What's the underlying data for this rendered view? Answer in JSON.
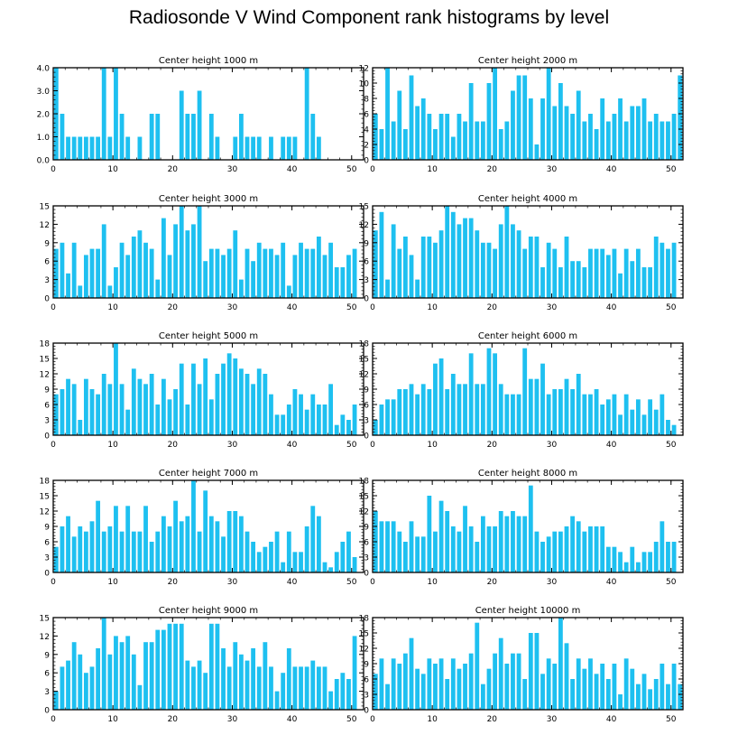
{
  "title": "Radiosonde V Wind Component rank histograms by level",
  "bar_color": "#1ec0f0",
  "chart_data": [
    {
      "type": "bar",
      "title": "Center height 1000 m",
      "ylim": [
        0,
        4
      ],
      "yticks": [
        0,
        1,
        2,
        3,
        4
      ],
      "ytick_labels": [
        "0.0",
        "1.0",
        "2.0",
        "3.0",
        "4.0"
      ],
      "xlim": [
        0,
        52
      ],
      "xticks": [
        0,
        10,
        20,
        30,
        40,
        50
      ],
      "values": [
        4,
        2,
        1,
        1,
        1,
        1,
        1,
        1,
        4,
        1,
        4,
        2,
        1,
        0,
        1,
        0,
        2,
        2,
        0,
        0,
        0,
        3,
        2,
        2,
        3,
        0,
        2,
        1,
        0,
        0,
        1,
        2,
        1,
        1,
        1,
        0,
        1,
        0,
        1,
        1,
        1,
        0,
        4,
        2,
        1,
        0,
        0,
        0,
        0,
        0,
        0,
        0
      ]
    },
    {
      "type": "bar",
      "title": "Center height 2000 m",
      "ylim": [
        0,
        12
      ],
      "yticks": [
        0,
        2,
        4,
        6,
        8,
        10,
        12
      ],
      "ytick_labels": [
        "0",
        "2",
        "4",
        "6",
        "8",
        "10",
        "12"
      ],
      "xlim": [
        0,
        52
      ],
      "xticks": [
        0,
        10,
        20,
        30,
        40,
        50
      ],
      "values": [
        6,
        4,
        12,
        5,
        9,
        4,
        11,
        7,
        8,
        6,
        4,
        6,
        6,
        3,
        6,
        5,
        10,
        5,
        5,
        10,
        12,
        4,
        5,
        9,
        11,
        11,
        8,
        2,
        8,
        12,
        7,
        10,
        7,
        6,
        9,
        5,
        6,
        4,
        8,
        5,
        6,
        8,
        5,
        7,
        7,
        8,
        5,
        6,
        5,
        5,
        6,
        11
      ]
    },
    {
      "type": "bar",
      "title": "Center height 3000 m",
      "ylim": [
        0,
        15
      ],
      "yticks": [
        0,
        3,
        6,
        9,
        12,
        15
      ],
      "ytick_labels": [
        "0",
        "3",
        "6",
        "9",
        "12",
        "15"
      ],
      "xlim": [
        0,
        52
      ],
      "xticks": [
        0,
        10,
        20,
        30,
        40,
        50
      ],
      "values": [
        8,
        9,
        4,
        9,
        2,
        7,
        8,
        8,
        12,
        2,
        5,
        9,
        7,
        10,
        11,
        9,
        8,
        3,
        13,
        7,
        12,
        15,
        11,
        12,
        15,
        6,
        8,
        8,
        7,
        8,
        11,
        3,
        8,
        6,
        9,
        8,
        8,
        7,
        9,
        2,
        7,
        9,
        8,
        8,
        10,
        7,
        9,
        5,
        5,
        7,
        8,
        0
      ]
    },
    {
      "type": "bar",
      "title": "Center height 4000 m",
      "ylim": [
        0,
        15
      ],
      "yticks": [
        0,
        3,
        6,
        9,
        12,
        15
      ],
      "ytick_labels": [
        "0",
        "3",
        "6",
        "9",
        "12",
        "15"
      ],
      "xlim": [
        0,
        52
      ],
      "xticks": [
        0,
        10,
        20,
        30,
        40,
        50
      ],
      "values": [
        11,
        14,
        3,
        12,
        8,
        10,
        7,
        3,
        10,
        10,
        9,
        11,
        15,
        14,
        12,
        13,
        13,
        11,
        9,
        9,
        8,
        12,
        15,
        12,
        11,
        8,
        10,
        10,
        5,
        9,
        8,
        5,
        10,
        6,
        6,
        5,
        8,
        8,
        8,
        7,
        8,
        4,
        8,
        6,
        8,
        5,
        5,
        10,
        9,
        8,
        9,
        0
      ]
    },
    {
      "type": "bar",
      "title": "Center height 5000 m",
      "ylim": [
        0,
        18
      ],
      "yticks": [
        0,
        3,
        6,
        9,
        12,
        15,
        18
      ],
      "ytick_labels": [
        "0",
        "3",
        "6",
        "9",
        "12",
        "15",
        "18"
      ],
      "xlim": [
        0,
        52
      ],
      "xticks": [
        0,
        10,
        20,
        30,
        40,
        50
      ],
      "values": [
        8,
        9,
        11,
        10,
        3,
        11,
        9,
        8,
        12,
        10,
        18,
        10,
        5,
        13,
        11,
        10,
        12,
        6,
        11,
        7,
        9,
        14,
        6,
        14,
        10,
        15,
        7,
        12,
        14,
        16,
        15,
        13,
        12,
        10,
        13,
        12,
        8,
        4,
        4,
        6,
        9,
        8,
        5,
        8,
        6,
        6,
        10,
        2,
        4,
        3,
        6,
        0
      ]
    },
    {
      "type": "bar",
      "title": "Center height 6000 m",
      "ylim": [
        0,
        18
      ],
      "yticks": [
        0,
        3,
        6,
        9,
        12,
        15,
        18
      ],
      "ytick_labels": [
        "0",
        "3",
        "6",
        "9",
        "12",
        "15",
        "18"
      ],
      "xlim": [
        0,
        52
      ],
      "xticks": [
        0,
        10,
        20,
        30,
        40,
        50
      ],
      "values": [
        3,
        6,
        7,
        7,
        9,
        9,
        10,
        8,
        10,
        9,
        14,
        15,
        9,
        12,
        10,
        10,
        16,
        10,
        10,
        17,
        16,
        10,
        8,
        8,
        8,
        17,
        11,
        11,
        14,
        8,
        9,
        9,
        11,
        9,
        12,
        8,
        8,
        9,
        6,
        7,
        8,
        4,
        8,
        5,
        7,
        4,
        7,
        5,
        8,
        3,
        2,
        0
      ]
    },
    {
      "type": "bar",
      "title": "Center height 7000 m",
      "ylim": [
        0,
        18
      ],
      "yticks": [
        0,
        3,
        6,
        9,
        12,
        15,
        18
      ],
      "ytick_labels": [
        "0",
        "3",
        "6",
        "9",
        "12",
        "15",
        "18"
      ],
      "xlim": [
        0,
        52
      ],
      "xticks": [
        0,
        10,
        20,
        30,
        40,
        50
      ],
      "values": [
        5,
        9,
        11,
        7,
        9,
        8,
        10,
        14,
        8,
        9,
        13,
        8,
        13,
        8,
        8,
        13,
        6,
        8,
        11,
        9,
        14,
        10,
        11,
        18,
        8,
        16,
        11,
        10,
        7,
        12,
        12,
        11,
        8,
        6,
        4,
        5,
        6,
        8,
        2,
        8,
        4,
        4,
        9,
        13,
        11,
        2,
        1,
        4,
        6,
        8,
        3,
        0
      ]
    },
    {
      "type": "bar",
      "title": "Center height 8000 m",
      "ylim": [
        0,
        18
      ],
      "yticks": [
        0,
        3,
        6,
        9,
        12,
        15,
        18
      ],
      "ytick_labels": [
        "0",
        "3",
        "6",
        "9",
        "12",
        "15",
        "18"
      ],
      "xlim": [
        0,
        52
      ],
      "xticks": [
        0,
        10,
        20,
        30,
        40,
        50
      ],
      "values": [
        12,
        10,
        10,
        10,
        8,
        6,
        10,
        7,
        7,
        15,
        8,
        14,
        12,
        9,
        8,
        13,
        9,
        6,
        11,
        9,
        9,
        12,
        11,
        12,
        11,
        11,
        17,
        8,
        6,
        7,
        8,
        8,
        9,
        11,
        10,
        8,
        9,
        9,
        9,
        5,
        5,
        4,
        2,
        5,
        2,
        4,
        4,
        6,
        10,
        6,
        6,
        0
      ]
    },
    {
      "type": "bar",
      "title": "Center height 9000 m",
      "ylim": [
        0,
        15
      ],
      "yticks": [
        0,
        3,
        6,
        9,
        12,
        15
      ],
      "ytick_labels": [
        "0",
        "3",
        "6",
        "9",
        "12",
        "15"
      ],
      "xlim": [
        0,
        52
      ],
      "xticks": [
        0,
        10,
        20,
        30,
        40,
        50
      ],
      "values": [
        3,
        7,
        8,
        11,
        9,
        6,
        7,
        10,
        15,
        9,
        12,
        11,
        12,
        9,
        4,
        11,
        11,
        13,
        13,
        14,
        14,
        14,
        8,
        7,
        8,
        6,
        14,
        14,
        10,
        7,
        11,
        9,
        8,
        10,
        7,
        11,
        7,
        3,
        6,
        10,
        7,
        7,
        7,
        8,
        7,
        7,
        3,
        5,
        6,
        5,
        12,
        0
      ]
    },
    {
      "type": "bar",
      "title": "Center height 10000 m",
      "ylim": [
        0,
        18
      ],
      "yticks": [
        0,
        3,
        6,
        9,
        12,
        15,
        18
      ],
      "ytick_labels": [
        "0",
        "3",
        "6",
        "9",
        "12",
        "15",
        "18"
      ],
      "xlim": [
        0,
        52
      ],
      "xticks": [
        0,
        10,
        20,
        30,
        40,
        50
      ],
      "values": [
        7,
        10,
        5,
        10,
        9,
        11,
        14,
        8,
        7,
        10,
        9,
        10,
        6,
        10,
        8,
        9,
        11,
        17,
        5,
        8,
        11,
        14,
        9,
        11,
        11,
        6,
        15,
        15,
        7,
        10,
        9,
        18,
        13,
        6,
        10,
        8,
        10,
        7,
        9,
        6,
        9,
        3,
        10,
        8,
        5,
        7,
        4,
        6,
        9,
        5,
        9,
        5
      ]
    }
  ]
}
